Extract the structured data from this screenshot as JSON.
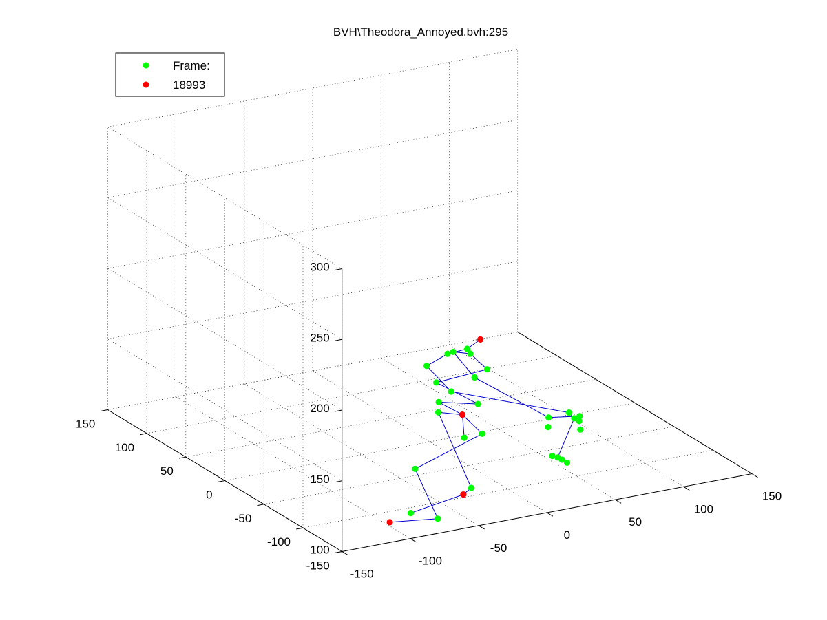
{
  "chart_data": {
    "type": "scatter",
    "title": "BVH\\Theodora_Annoyed.bvh:295",
    "xlabel": "",
    "ylabel": "",
    "zlabel": "",
    "xlim": [
      -150,
      150
    ],
    "ylim": [
      -150,
      150
    ],
    "zlim": [
      100,
      300
    ],
    "x_ticks": [
      "-150",
      "-100",
      "-50",
      "0",
      "50",
      "100",
      "150"
    ],
    "y_ticks": [
      "-150",
      "-100",
      "-50",
      "0",
      "50",
      "100",
      "150"
    ],
    "z_ticks": [
      "100",
      "150",
      "200",
      "250",
      "300"
    ],
    "grid": true,
    "legend": {
      "position": "top-left",
      "entries": [
        {
          "label": "Frame:",
          "color": "#00ff00"
        },
        {
          "label": "18993",
          "color": "#ff0000"
        }
      ]
    },
    "colors": {
      "joint": "#00ff00",
      "end_effector": "#ff0000",
      "bone": "#0000cc"
    },
    "series": [
      {
        "name": "Frame:",
        "marker_color": "#00ff00",
        "points": [
          {
            "x": 18.6,
            "y": -15.3,
            "z": 167.4
          },
          {
            "x": 9.1,
            "y": -6.8,
            "z": 162.8
          },
          {
            "x": 21.5,
            "y": -14.3,
            "z": 163.1
          },
          {
            "x": 25.6,
            "y": 14.8,
            "z": 153.9
          },
          {
            "x": 26.9,
            "y": -26.3,
            "z": 155.1
          },
          {
            "x": 3.1,
            "y": 9.5,
            "z": 149.9
          },
          {
            "x": 20.6,
            "y": -21.2,
            "z": 148.8
          },
          {
            "x": 13.3,
            "y": 14.9,
            "z": 134.5
          },
          {
            "x": 22.7,
            "y": -22.0,
            "z": 129.9
          },
          {
            "x": 14.5,
            "y": 14.0,
            "z": 120.7
          },
          {
            "x": 14.9,
            "y": 15.1,
            "z": 113.0
          },
          {
            "x": 27.1,
            "y": -19.7,
            "z": 107.3
          },
          {
            "x": 18.5,
            "y": -11.7,
            "z": 103.4
          },
          {
            "x": 2.4,
            "y": -23.1,
            "z": 142.8
          },
          {
            "x": 63.3,
            "y": -67.5,
            "z": 131.6
          },
          {
            "x": 64.8,
            "y": -71.5,
            "z": 128.6
          },
          {
            "x": 33.0,
            "y": -106.0,
            "z": 118.2
          },
          {
            "x": 35.0,
            "y": -108.0,
            "z": 117.0
          },
          {
            "x": 30.5,
            "y": -103.5,
            "z": 119.0
          },
          {
            "x": 37.0,
            "y": -111.0,
            "z": 115.5
          },
          {
            "x": 60.4,
            "y": -46.4,
            "z": 121.6
          },
          {
            "x": 58.4,
            "y": -49.4,
            "z": 116.2
          },
          {
            "x": 73.3,
            "y": -63.6,
            "z": 125.9
          },
          {
            "x": 72.4,
            "y": -64.6,
            "z": 123.0
          },
          {
            "x": 73.0,
            "y": -65.0,
            "z": 117.0
          },
          {
            "x": 1.3,
            "y": 26.8,
            "z": 40.4
          },
          {
            "x": 9.1,
            "y": -37.1,
            "z": 78.1
          },
          {
            "x": -5.3,
            "y": 9.6,
            "z": 78.6
          },
          {
            "x": -13.8,
            "y": -34.4,
            "z": 59.6
          }
        ]
      },
      {
        "name": "18993",
        "marker_color": "#ff0000",
        "points": [
          {
            "x": 27.5,
            "y": -16.6,
            "z": 172.8
          },
          {
            "x": 15.0,
            "y": -15.5,
            "z": 121.6
          },
          {
            "x": 18.1,
            "y": -11.3,
            "z": 63.2
          },
          {
            "x": -14.2,
            "y": 26.4,
            "z": 36.9
          }
        ]
      }
    ]
  }
}
